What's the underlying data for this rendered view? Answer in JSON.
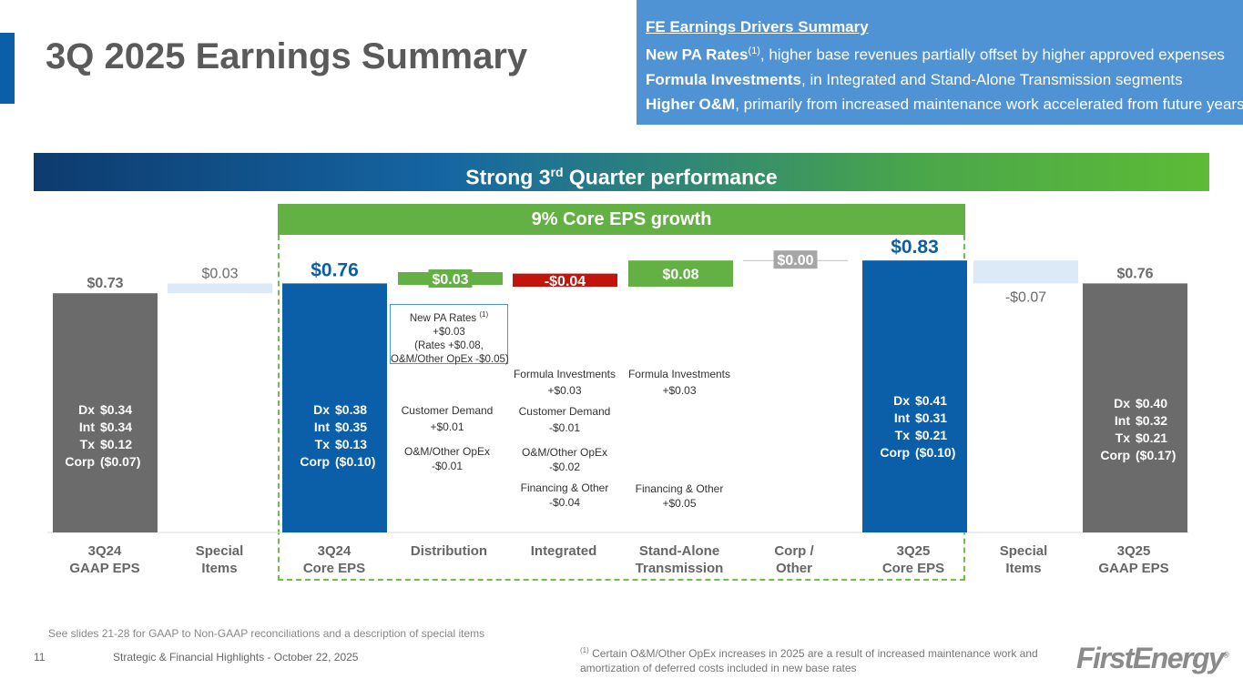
{
  "title": "3Q 2025 Earnings Summary",
  "drivers": {
    "heading": "FE Earnings Drivers Summary",
    "lines": [
      {
        "bold": "New PA Rates",
        "sup": "(1)",
        "rest": ", higher base revenues partially offset by higher approved expenses"
      },
      {
        "bold": "Formula Investments",
        "sup": "",
        "rest": ", in Integrated and Stand-Alone Transmission segments"
      },
      {
        "bold": "Higher O&M",
        "sup": "",
        "rest": ", primarily from increased maintenance work accelerated from future years"
      }
    ]
  },
  "banner": {
    "pre": "Strong 3",
    "sup": "rd",
    "post": " Quarter performance"
  },
  "growth_label": "9% Core EPS growth",
  "colors": {
    "gray": "#6b6b6b",
    "blue": "#0b5ea8",
    "green": "#63b045",
    "red": "#c0140d",
    "light": "#dce9f6",
    "zero": "#a6a6a6"
  },
  "chart_data": {
    "type": "waterfall",
    "title": "Strong 3rd Quarter performance",
    "ylim": [
      0,
      0.83
    ],
    "bars": [
      {
        "category": "3Q24 GAAP EPS",
        "kind": "total",
        "value": 0.73,
        "label": "$0.73"
      },
      {
        "category": "Special Items",
        "kind": "special",
        "value": 0.03,
        "label": "$0.03"
      },
      {
        "category": "3Q24 Core EPS",
        "kind": "core",
        "value": 0.76,
        "label": "$0.76"
      },
      {
        "category": "Distribution",
        "kind": "delta",
        "value": 0.03,
        "label": "$0.03"
      },
      {
        "category": "Integrated",
        "kind": "delta",
        "value": -0.04,
        "label": "-$0.04"
      },
      {
        "category": "Stand-Alone Transmission",
        "kind": "delta",
        "value": 0.08,
        "label": "$0.08"
      },
      {
        "category": "Corp / Other",
        "kind": "delta",
        "value": 0.0,
        "label": "$0.00"
      },
      {
        "category": "3Q25 Core EPS",
        "kind": "core",
        "value": 0.83,
        "label": "$0.83"
      },
      {
        "category": "Special Items",
        "kind": "special",
        "value": -0.07,
        "label": "-$0.07"
      },
      {
        "category": "3Q25 GAAP EPS",
        "kind": "total",
        "value": 0.76,
        "label": "$0.76"
      }
    ],
    "x_labels": [
      [
        "3Q24",
        "GAAP EPS"
      ],
      [
        "Special",
        "Items"
      ],
      [
        "3Q24",
        "Core EPS"
      ],
      [
        "Distribution",
        ""
      ],
      [
        "Integrated",
        ""
      ],
      [
        "Stand-Alone",
        "Transmission"
      ],
      [
        "Corp /",
        "Other"
      ],
      [
        "3Q25",
        "Core EPS"
      ],
      [
        "Special",
        "Items"
      ],
      [
        "3Q25",
        "GAAP EPS"
      ]
    ],
    "components": {
      "3Q24 GAAP EPS": [
        [
          "Dx",
          "$0.34"
        ],
        [
          "Int",
          "$0.34"
        ],
        [
          "Tx",
          "$0.12"
        ],
        [
          "Corp",
          "($0.07)"
        ]
      ],
      "3Q24 Core EPS": [
        [
          "Dx",
          "$0.38"
        ],
        [
          "Int",
          "$0.35"
        ],
        [
          "Tx",
          "$0.13"
        ],
        [
          "Corp",
          "($0.10)"
        ]
      ],
      "3Q25 Core EPS": [
        [
          "Dx",
          "$0.41"
        ],
        [
          "Int",
          "$0.31"
        ],
        [
          "Tx",
          "$0.21"
        ],
        [
          "Corp",
          "($0.10)"
        ]
      ],
      "3Q25 GAAP EPS": [
        [
          "Dx",
          "$0.40"
        ],
        [
          "Int",
          "$0.32"
        ],
        [
          "Tx",
          "$0.21"
        ],
        [
          "Corp",
          "($0.17)"
        ]
      ]
    },
    "annotations": {
      "npa": [
        "New PA Rates ",
        "(1)",
        "+$0.03",
        "(Rates +$0.08,",
        "O&M/Other OpEx -$0.05)"
      ],
      "dist_demand": [
        "Customer Demand",
        "+$0.01"
      ],
      "dist_om": [
        "O&M/Other OpEx",
        "-$0.01"
      ],
      "int_formula": [
        "Formula Investments",
        "+$0.03"
      ],
      "int_demand": [
        "Customer Demand",
        "-$0.01"
      ],
      "int_om": [
        "O&M/Other OpEx",
        "-$0.02"
      ],
      "int_fin": [
        "Financing & Other",
        "-$0.04"
      ],
      "tx_formula": [
        "Formula Investments",
        "+$0.03"
      ],
      "tx_fin": [
        "Financing & Other",
        "+$0.05"
      ]
    }
  },
  "footer": {
    "see_slides": "See slides 21-28 for GAAP to Non-GAAP reconciliations and a description of special items",
    "page": "11",
    "deck": "Strategic & Financial Highlights - October 22, 2025",
    "footnote_sup": "(1)",
    "footnote": " Certain O&M/Other OpEx increases in 2025 are a result of increased maintenance work and amortization of deferred costs included in new base rates",
    "logo": "FirstEnergy",
    "logo_mark": "®"
  }
}
